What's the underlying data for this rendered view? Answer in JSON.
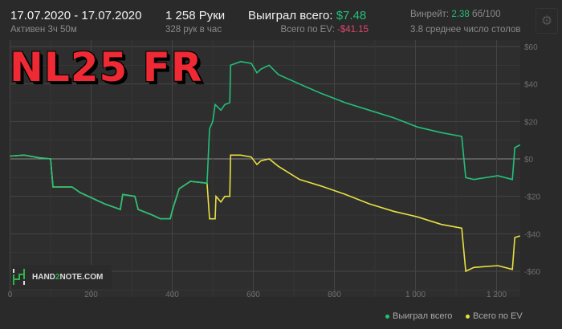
{
  "header": {
    "date_range": "17.07.2020 - 17.07.2020",
    "active": "Активен 3ч 50м",
    "hands": "1 258 Руки",
    "hands_per_hour": "328 рук в час",
    "won_label": "Выиграл всего:",
    "won_value": "$7.48",
    "ev_label": "Всего по EV:",
    "ev_value": "-$41.15",
    "winrate_label": "Винрейт:",
    "winrate_value": "2.38",
    "winrate_unit": "бб/100",
    "avg_tables": "3.8 среднее число столов",
    "settings_icon": "gear-icon"
  },
  "overlay_title": "NL25 FR",
  "watermark": {
    "pre": "HAND",
    "mid": "2",
    "post": "NOTE.COM"
  },
  "colors": {
    "won": "#22c07a",
    "ev": "#e8e040",
    "negative": "#e0456e",
    "title": "#f02a35"
  },
  "chart_data": {
    "type": "line",
    "title": "",
    "xlabel": "",
    "ylabel": "",
    "xlim": [
      0,
      1258
    ],
    "ylim": [
      -70,
      60
    ],
    "grid": true,
    "legend_position": "bottom-right",
    "x_ticks": [
      "0",
      "200",
      "400",
      "600",
      "800",
      "1 000",
      "1 200"
    ],
    "x_tick_values": [
      0,
      200,
      400,
      600,
      800,
      1000,
      1200
    ],
    "y_ticks": [
      "$60",
      "$40",
      "$20",
      "$0",
      "-$20",
      "-$40",
      "-$60"
    ],
    "y_tick_values": [
      60,
      40,
      20,
      0,
      -20,
      -40,
      -60
    ],
    "series": [
      {
        "name": "Выиграл всего",
        "color": "#22c07a",
        "points": [
          [
            0,
            1.5
          ],
          [
            35,
            2
          ],
          [
            74,
            0.5
          ],
          [
            100,
            0
          ],
          [
            106,
            -15
          ],
          [
            153,
            -15
          ],
          [
            173,
            -18
          ],
          [
            233,
            -24
          ],
          [
            272,
            -27
          ],
          [
            278,
            -19
          ],
          [
            308,
            -20
          ],
          [
            316,
            -27
          ],
          [
            351,
            -30
          ],
          [
            371,
            -32
          ],
          [
            395,
            -32
          ],
          [
            401,
            -27
          ],
          [
            417,
            -16
          ],
          [
            445,
            -12
          ],
          [
            486,
            -13
          ],
          [
            492,
            16
          ],
          [
            500,
            20
          ],
          [
            506,
            29
          ],
          [
            520,
            26
          ],
          [
            530,
            29
          ],
          [
            542,
            30
          ],
          [
            544,
            50
          ],
          [
            569,
            52
          ],
          [
            595,
            51
          ],
          [
            609,
            46
          ],
          [
            619,
            48
          ],
          [
            639,
            50
          ],
          [
            662,
            45
          ],
          [
            714,
            40
          ],
          [
            767,
            35
          ],
          [
            827,
            30
          ],
          [
            886,
            26
          ],
          [
            946,
            22
          ],
          [
            1005,
            17
          ],
          [
            1064,
            14
          ],
          [
            1114,
            12
          ],
          [
            1124,
            -10
          ],
          [
            1144,
            -11
          ],
          [
            1203,
            -9
          ],
          [
            1239,
            -11
          ],
          [
            1245,
            6
          ],
          [
            1258,
            7.48
          ]
        ]
      },
      {
        "name": "Всего по EV",
        "color": "#e8e040",
        "points": [
          [
            0,
            1.5
          ],
          [
            35,
            2
          ],
          [
            74,
            0.5
          ],
          [
            100,
            0
          ],
          [
            106,
            -15
          ],
          [
            153,
            -15
          ],
          [
            173,
            -18
          ],
          [
            233,
            -24
          ],
          [
            272,
            -27
          ],
          [
            278,
            -19
          ],
          [
            308,
            -20
          ],
          [
            316,
            -27
          ],
          [
            351,
            -30
          ],
          [
            371,
            -32
          ],
          [
            395,
            -32
          ],
          [
            401,
            -27
          ],
          [
            417,
            -16
          ],
          [
            445,
            -12
          ],
          [
            486,
            -13
          ],
          [
            492,
            -32
          ],
          [
            506,
            -32
          ],
          [
            508,
            -20
          ],
          [
            520,
            -23
          ],
          [
            530,
            -20
          ],
          [
            542,
            -20
          ],
          [
            544,
            2
          ],
          [
            569,
            2
          ],
          [
            595,
            1
          ],
          [
            609,
            -3
          ],
          [
            619,
            -1
          ],
          [
            639,
            0
          ],
          [
            662,
            -4
          ],
          [
            714,
            -11
          ],
          [
            767,
            -14.5
          ],
          [
            827,
            -19
          ],
          [
            886,
            -24
          ],
          [
            946,
            -28
          ],
          [
            1005,
            -31
          ],
          [
            1064,
            -35
          ],
          [
            1114,
            -37
          ],
          [
            1124,
            -60
          ],
          [
            1144,
            -58
          ],
          [
            1203,
            -57
          ],
          [
            1239,
            -59
          ],
          [
            1245,
            -42
          ],
          [
            1258,
            -41.15
          ]
        ]
      }
    ]
  }
}
